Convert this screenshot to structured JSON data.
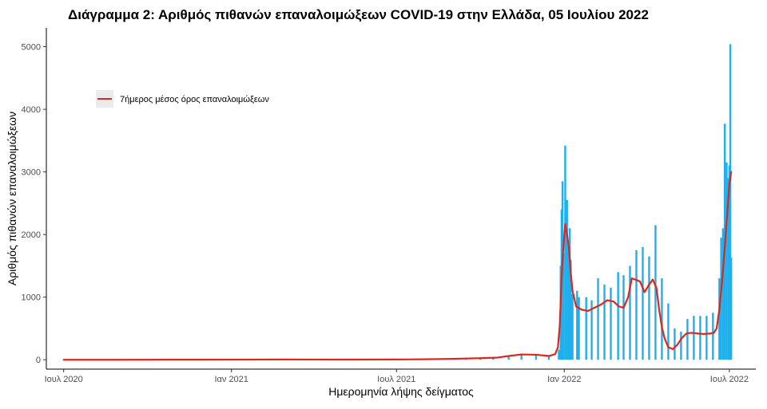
{
  "chart_data": {
    "type": "bar",
    "title": "Διάγραμμα 2: Αριθμός πιθανών επαναλοιμώξεων COVID-19 στην Ελλάδα, 05 Ιουλίου 2022",
    "xlabel": "Ημερομηνία λήψης δείγματος",
    "ylabel": "Αριθμός πιθανών επαναλοιμώξεων",
    "xlim": [
      "2020-06-12",
      "2022-07-30"
    ],
    "ylim": [
      -150,
      5300
    ],
    "x_ticks": [
      {
        "date": "2020-07-01",
        "label": "Ιουλ 2020"
      },
      {
        "date": "2021-01-01",
        "label": "Ιαν 2021"
      },
      {
        "date": "2021-07-01",
        "label": "Ιουλ 2021"
      },
      {
        "date": "2022-01-01",
        "label": "Ιαν 2022"
      },
      {
        "date": "2022-07-01",
        "label": "Ιουλ 2022"
      }
    ],
    "y_ticks": [
      0,
      1000,
      2000,
      3000,
      4000,
      5000
    ],
    "grid": false,
    "legend_position": "top-left",
    "series": [
      {
        "kind": "bars",
        "color": "#1EB0EE",
        "points": [
          [
            "2020-07-05",
            0
          ],
          [
            "2020-08-15",
            0
          ],
          [
            "2020-09-15",
            1
          ],
          [
            "2020-10-15",
            2
          ],
          [
            "2020-11-15",
            3
          ],
          [
            "2020-12-15",
            2
          ],
          [
            "2021-01-15",
            3
          ],
          [
            "2021-02-15",
            4
          ],
          [
            "2021-03-15",
            6
          ],
          [
            "2021-04-15",
            5
          ],
          [
            "2021-05-15",
            4
          ],
          [
            "2021-06-15",
            3
          ],
          [
            "2021-07-15",
            5
          ],
          [
            "2021-08-01",
            10
          ],
          [
            "2021-08-15",
            12
          ],
          [
            "2021-09-01",
            20
          ],
          [
            "2021-09-15",
            18
          ],
          [
            "2021-10-01",
            25
          ],
          [
            "2021-10-15",
            40
          ],
          [
            "2021-11-01",
            70
          ],
          [
            "2021-11-15",
            90
          ],
          [
            "2021-12-01",
            80
          ],
          [
            "2021-12-15",
            60
          ],
          [
            "2021-12-26",
            160
          ],
          [
            "2021-12-28",
            1500
          ],
          [
            "2021-12-29",
            2400
          ],
          [
            "2021-12-30",
            2850
          ],
          [
            "2021-12-31",
            1700
          ],
          [
            "2022-01-02",
            3420
          ],
          [
            "2022-01-04",
            2550
          ],
          [
            "2022-01-05",
            1800
          ],
          [
            "2022-01-07",
            2100
          ],
          [
            "2022-01-08",
            1600
          ],
          [
            "2022-01-10",
            1050
          ],
          [
            "2022-01-15",
            1100
          ],
          [
            "2022-01-17",
            1000
          ],
          [
            "2022-01-25",
            1000
          ],
          [
            "2022-01-31",
            950
          ],
          [
            "2022-02-07",
            1300
          ],
          [
            "2022-02-14",
            1200
          ],
          [
            "2022-02-21",
            1150
          ],
          [
            "2022-03-01",
            1400
          ],
          [
            "2022-03-07",
            1350
          ],
          [
            "2022-03-14",
            1500
          ],
          [
            "2022-03-21",
            1750
          ],
          [
            "2022-03-28",
            1800
          ],
          [
            "2022-04-04",
            1650
          ],
          [
            "2022-04-11",
            2150
          ],
          [
            "2022-04-18",
            1300
          ],
          [
            "2022-04-25",
            900
          ],
          [
            "2022-05-02",
            500
          ],
          [
            "2022-05-09",
            450
          ],
          [
            "2022-05-16",
            650
          ],
          [
            "2022-05-23",
            700
          ],
          [
            "2022-05-30",
            700
          ],
          [
            "2022-06-06",
            700
          ],
          [
            "2022-06-13",
            750
          ],
          [
            "2022-06-20",
            1300
          ],
          [
            "2022-06-22",
            1950
          ],
          [
            "2022-06-24",
            2100
          ],
          [
            "2022-06-26",
            3770
          ],
          [
            "2022-06-28",
            3150
          ],
          [
            "2022-06-30",
            2900
          ],
          [
            "2022-07-01",
            3100
          ],
          [
            "2022-07-02",
            5040
          ],
          [
            "2022-07-03",
            1630
          ]
        ]
      },
      {
        "kind": "line",
        "name": "7ήμερος μέσος όρος επαναλοιμώξεων",
        "color": "#E0251B",
        "points": [
          [
            "2020-07-01",
            0
          ],
          [
            "2020-09-01",
            0
          ],
          [
            "2020-11-01",
            1
          ],
          [
            "2021-01-01",
            2
          ],
          [
            "2021-03-01",
            4
          ],
          [
            "2021-05-01",
            3
          ],
          [
            "2021-07-01",
            4
          ],
          [
            "2021-08-01",
            8
          ],
          [
            "2021-09-01",
            15
          ],
          [
            "2021-10-01",
            25
          ],
          [
            "2021-10-20",
            35
          ],
          [
            "2021-11-01",
            60
          ],
          [
            "2021-11-15",
            85
          ],
          [
            "2021-12-01",
            80
          ],
          [
            "2021-12-15",
            60
          ],
          [
            "2021-12-22",
            90
          ],
          [
            "2021-12-25",
            200
          ],
          [
            "2021-12-27",
            550
          ],
          [
            "2021-12-29",
            1300
          ],
          [
            "2021-12-31",
            1800
          ],
          [
            "2022-01-02",
            2170
          ],
          [
            "2022-01-04",
            2000
          ],
          [
            "2022-01-06",
            1800
          ],
          [
            "2022-01-08",
            1400
          ],
          [
            "2022-01-10",
            1100
          ],
          [
            "2022-01-14",
            850
          ],
          [
            "2022-01-20",
            800
          ],
          [
            "2022-01-27",
            780
          ],
          [
            "2022-02-03",
            830
          ],
          [
            "2022-02-10",
            880
          ],
          [
            "2022-02-17",
            950
          ],
          [
            "2022-02-24",
            930
          ],
          [
            "2022-03-02",
            850
          ],
          [
            "2022-03-07",
            830
          ],
          [
            "2022-03-12",
            1000
          ],
          [
            "2022-03-16",
            1300
          ],
          [
            "2022-03-20",
            1280
          ],
          [
            "2022-03-25",
            1250
          ],
          [
            "2022-03-30",
            1080
          ],
          [
            "2022-04-04",
            1200
          ],
          [
            "2022-04-08",
            1280
          ],
          [
            "2022-04-12",
            1150
          ],
          [
            "2022-04-15",
            800
          ],
          [
            "2022-04-18",
            520
          ],
          [
            "2022-04-21",
            340
          ],
          [
            "2022-04-25",
            200
          ],
          [
            "2022-04-30",
            170
          ],
          [
            "2022-05-05",
            240
          ],
          [
            "2022-05-10",
            350
          ],
          [
            "2022-05-15",
            420
          ],
          [
            "2022-05-20",
            430
          ],
          [
            "2022-05-27",
            420
          ],
          [
            "2022-06-03",
            410
          ],
          [
            "2022-06-10",
            420
          ],
          [
            "2022-06-14",
            430
          ],
          [
            "2022-06-17",
            500
          ],
          [
            "2022-06-20",
            800
          ],
          [
            "2022-06-23",
            1250
          ],
          [
            "2022-06-26",
            1800
          ],
          [
            "2022-06-29",
            2400
          ],
          [
            "2022-07-01",
            2800
          ],
          [
            "2022-07-03",
            3000
          ]
        ]
      }
    ]
  }
}
